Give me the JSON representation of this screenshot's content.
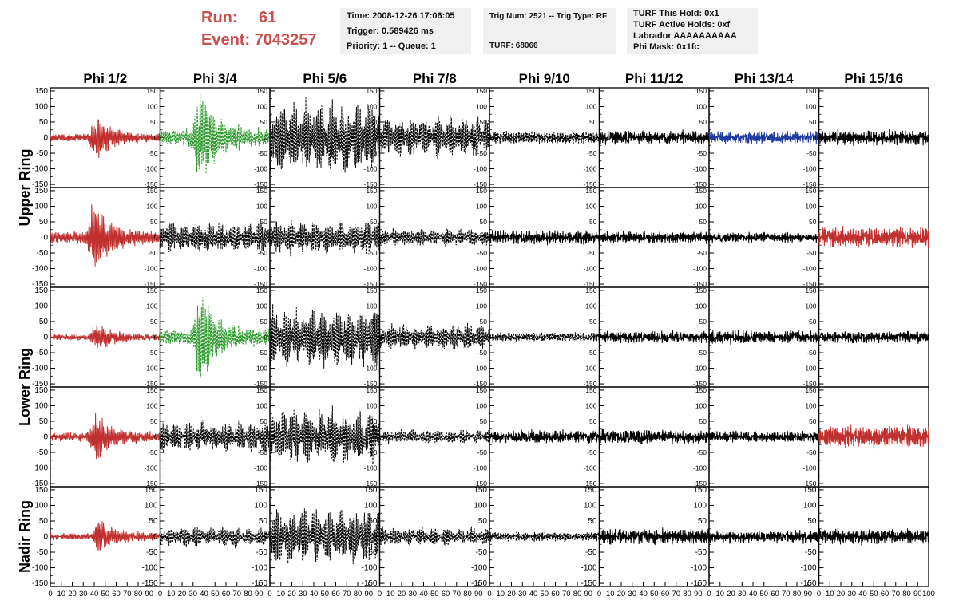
{
  "header": {
    "run_label": "Run:",
    "run_value": "61",
    "event_label": "Event:",
    "event_value": "7043257",
    "time_line": "Time: 2008-12-26 17:06:05",
    "trigger_line": "Trigger: 0.589426 ms",
    "priority_line": "Priority: 1 -- Queue: 1",
    "trig_line": "Trig Num: 2521 -- Trig Type: RF",
    "turf_line": "TURF: 68066",
    "turf_hold_line": "TURF This Hold: 0x1",
    "turf_active_line": "TURF Active Holds: 0xf",
    "labrador_line": "Labrador AAAAAAAAAA",
    "phi_mask_line": "Phi Mask: 0x1fc"
  },
  "colors": {
    "header_red": "#c8504f",
    "trace_red": "#c0302e",
    "trace_green": "#2a9a2a",
    "trace_blue": "#1f3aa0",
    "trace_black": "#000000"
  },
  "chart_data": {
    "type": "line",
    "grid": false,
    "columns": [
      "Phi 1/2",
      "Phi 3/4",
      "Phi 5/6",
      "Phi 7/8",
      "Phi 9/10",
      "Phi 11/12",
      "Phi 13/14",
      "Phi 15/16"
    ],
    "row_groups": [
      {
        "label": "Upper Ring",
        "rows": [
          0,
          1
        ]
      },
      {
        "label": "Lower Ring",
        "rows": [
          2,
          3
        ]
      },
      {
        "label": "Nadir Ring",
        "rows": [
          4
        ]
      }
    ],
    "xlim": [
      0,
      100
    ],
    "ylim": [
      -160,
      160
    ],
    "yticks": [
      "150",
      "100",
      "50",
      "0",
      "-50",
      "-100",
      "-150"
    ],
    "xticks": [
      "0",
      "10",
      "20",
      "30",
      "40",
      "50",
      "60",
      "70",
      "80",
      "90",
      "100"
    ],
    "traces": [
      [
        {
          "color": "#c0302e",
          "style": "solid",
          "amp": 70,
          "burst_center": 42,
          "envelope": "burst",
          "noise": 10
        },
        {
          "color": "#2a9a2a",
          "style": "dashed",
          "amp": 150,
          "burst_center": 36,
          "envelope": "burst",
          "noise": 20
        },
        {
          "color": "#000000",
          "style": "dashed",
          "amp": 130,
          "burst_center": 50,
          "envelope": "beats",
          "noise": 10
        },
        {
          "color": "#000000",
          "style": "dashed",
          "amp": 70,
          "burst_center": 50,
          "envelope": "beats",
          "noise": 10
        },
        {
          "color": "#000000",
          "style": "dashed",
          "amp": 20,
          "burst_center": 50,
          "envelope": "flat",
          "noise": 8
        },
        {
          "color": "#000000",
          "style": "solid",
          "amp": 20,
          "burst_center": 50,
          "envelope": "flat",
          "noise": 14
        },
        {
          "color": "#1f3aa0",
          "style": "solid",
          "amp": 18,
          "burst_center": 50,
          "envelope": "flat",
          "noise": 14
        },
        {
          "color": "#000000",
          "style": "solid",
          "amp": 22,
          "burst_center": 50,
          "envelope": "flat",
          "noise": 16
        }
      ],
      [
        {
          "color": "#c0302e",
          "style": "solid",
          "amp": 110,
          "burst_center": 40,
          "envelope": "burst",
          "noise": 12
        },
        {
          "color": "#000000",
          "style": "dashed",
          "amp": 55,
          "burst_center": 50,
          "envelope": "beats",
          "noise": 10
        },
        {
          "color": "#000000",
          "style": "dashed",
          "amp": 60,
          "burst_center": 50,
          "envelope": "beats",
          "noise": 10
        },
        {
          "color": "#000000",
          "style": "dashed",
          "amp": 30,
          "burst_center": 50,
          "envelope": "beats",
          "noise": 10
        },
        {
          "color": "#000000",
          "style": "solid",
          "amp": 20,
          "burst_center": 50,
          "envelope": "flat",
          "noise": 16
        },
        {
          "color": "#000000",
          "style": "solid",
          "amp": 16,
          "burst_center": 50,
          "envelope": "flat",
          "noise": 14
        },
        {
          "color": "#000000",
          "style": "solid",
          "amp": 14,
          "burst_center": 50,
          "envelope": "flat",
          "noise": 12
        },
        {
          "color": "#c0302e",
          "style": "solid",
          "amp": 30,
          "burst_center": 50,
          "envelope": "flat",
          "noise": 18
        }
      ],
      [
        {
          "color": "#c0302e",
          "style": "solid",
          "amp": 50,
          "burst_center": 42,
          "envelope": "burst",
          "noise": 8
        },
        {
          "color": "#2a9a2a",
          "style": "dashed",
          "amp": 150,
          "burst_center": 36,
          "envelope": "burst",
          "noise": 18
        },
        {
          "color": "#000000",
          "style": "dashed",
          "amp": 110,
          "burst_center": 50,
          "envelope": "beats",
          "noise": 10
        },
        {
          "color": "#000000",
          "style": "dashed",
          "amp": 45,
          "burst_center": 50,
          "envelope": "beats",
          "noise": 10
        },
        {
          "color": "#000000",
          "style": "dashed",
          "amp": 14,
          "burst_center": 50,
          "envelope": "flat",
          "noise": 8
        },
        {
          "color": "#000000",
          "style": "solid",
          "amp": 16,
          "burst_center": 50,
          "envelope": "flat",
          "noise": 14
        },
        {
          "color": "#000000",
          "style": "solid",
          "amp": 18,
          "burst_center": 50,
          "envelope": "flat",
          "noise": 16
        },
        {
          "color": "#000000",
          "style": "solid",
          "amp": 16,
          "burst_center": 50,
          "envelope": "flat",
          "noise": 14
        }
      ],
      [
        {
          "color": "#c0302e",
          "style": "solid",
          "amp": 75,
          "burst_center": 42,
          "envelope": "burst",
          "noise": 12
        },
        {
          "color": "#000000",
          "style": "dashed",
          "amp": 55,
          "burst_center": 50,
          "envelope": "beats",
          "noise": 10
        },
        {
          "color": "#000000",
          "style": "dashed",
          "amp": 100,
          "burst_center": 50,
          "envelope": "beats",
          "noise": 10
        },
        {
          "color": "#000000",
          "style": "dashed",
          "amp": 25,
          "burst_center": 50,
          "envelope": "beats",
          "noise": 10
        },
        {
          "color": "#000000",
          "style": "solid",
          "amp": 18,
          "burst_center": 50,
          "envelope": "flat",
          "noise": 16
        },
        {
          "color": "#000000",
          "style": "solid",
          "amp": 20,
          "burst_center": 50,
          "envelope": "flat",
          "noise": 16
        },
        {
          "color": "#000000",
          "style": "solid",
          "amp": 16,
          "burst_center": 50,
          "envelope": "flat",
          "noise": 14
        },
        {
          "color": "#c0302e",
          "style": "solid",
          "amp": 35,
          "burst_center": 55,
          "envelope": "flat",
          "noise": 16
        }
      ],
      [
        {
          "color": "#c0302e",
          "style": "solid",
          "amp": 55,
          "burst_center": 45,
          "envelope": "burst",
          "noise": 10
        },
        {
          "color": "#000000",
          "style": "dashed",
          "amp": 35,
          "burst_center": 50,
          "envelope": "beats",
          "noise": 10
        },
        {
          "color": "#000000",
          "style": "dashed",
          "amp": 100,
          "burst_center": 50,
          "envelope": "beats",
          "noise": 10
        },
        {
          "color": "#000000",
          "style": "dashed",
          "amp": 30,
          "burst_center": 50,
          "envelope": "beats",
          "noise": 10
        },
        {
          "color": "#000000",
          "style": "dashed",
          "amp": 14,
          "burst_center": 50,
          "envelope": "flat",
          "noise": 8
        },
        {
          "color": "#000000",
          "style": "solid",
          "amp": 22,
          "burst_center": 50,
          "envelope": "flat",
          "noise": 16
        },
        {
          "color": "#000000",
          "style": "solid",
          "amp": 18,
          "burst_center": 50,
          "envelope": "flat",
          "noise": 14
        },
        {
          "color": "#000000",
          "style": "solid",
          "amp": 22,
          "burst_center": 50,
          "envelope": "flat",
          "noise": 16
        }
      ]
    ]
  }
}
